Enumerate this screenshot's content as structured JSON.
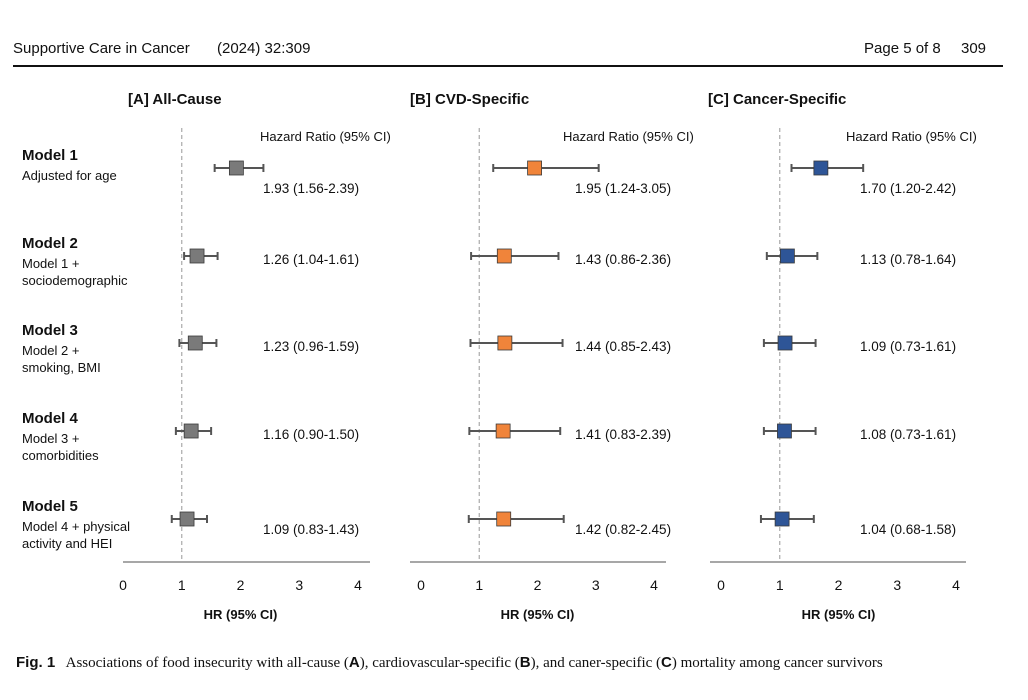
{
  "header": {
    "journal": "Supportive Care in Cancer",
    "citation": "(2024) 32:309",
    "page": "Page 5 of 8",
    "page_number": "309"
  },
  "caption": {
    "label": "Fig. 1",
    "text_1": "Associations of food insecurity with all-cause (",
    "A": "A",
    "text_2": "), cardiovascular-specific (",
    "B": "B",
    "text_3": "), and caner-specific (",
    "C": "C",
    "text_4": ") mortality among cancer survivors"
  },
  "models": [
    {
      "title": "Model 1",
      "desc": [
        "Adjusted for age"
      ]
    },
    {
      "title": "Model 2",
      "desc": [
        "Model 1 +",
        "sociodemographic"
      ]
    },
    {
      "title": "Model 3",
      "desc": [
        "Model 2 +",
        "smoking, BMI"
      ]
    },
    {
      "title": "Model 4",
      "desc": [
        "Model 3 +",
        "comorbidities"
      ]
    },
    {
      "title": "Model 5",
      "desc": [
        "Model 4 + physical",
        "activity and HEI"
      ]
    }
  ],
  "chart_data": [
    {
      "type": "scatter",
      "title": "[A] All-Cause",
      "column_label": "Hazard Ratio (95% CI)",
      "xlabel": "HR (95% CI)",
      "xlim": [
        0,
        4
      ],
      "xticks": [
        0,
        1,
        2,
        3,
        4
      ],
      "reference_line": 1,
      "color": "#7a7a7a",
      "points": [
        {
          "hr": 1.93,
          "low": 1.56,
          "high": 2.39,
          "label": "1.93 (1.56-2.39)"
        },
        {
          "hr": 1.26,
          "low": 1.04,
          "high": 1.61,
          "label": "1.26 (1.04-1.61)"
        },
        {
          "hr": 1.23,
          "low": 0.96,
          "high": 1.59,
          "label": "1.23 (0.96-1.59)"
        },
        {
          "hr": 1.16,
          "low": 0.9,
          "high": 1.5,
          "label": "1.16 (0.90-1.50)"
        },
        {
          "hr": 1.09,
          "low": 0.83,
          "high": 1.43,
          "label": "1.09 (0.83-1.43)"
        }
      ]
    },
    {
      "type": "scatter",
      "title": "[B] CVD-Specific",
      "column_label": "Hazard Ratio (95% CI)",
      "xlabel": "HR (95% CI)",
      "xlim": [
        0,
        4
      ],
      "xticks": [
        0,
        1,
        2,
        3,
        4
      ],
      "reference_line": 1,
      "color": "#f0843a",
      "points": [
        {
          "hr": 1.95,
          "low": 1.24,
          "high": 3.05,
          "label": "1.95 (1.24-3.05)"
        },
        {
          "hr": 1.43,
          "low": 0.86,
          "high": 2.36,
          "label": "1.43 (0.86-2.36)"
        },
        {
          "hr": 1.44,
          "low": 0.85,
          "high": 2.43,
          "label": "1.44 (0.85-2.43)"
        },
        {
          "hr": 1.41,
          "low": 0.83,
          "high": 2.39,
          "label": "1.41 (0.83-2.39)"
        },
        {
          "hr": 1.42,
          "low": 0.82,
          "high": 2.45,
          "label": "1.42 (0.82-2.45)"
        }
      ]
    },
    {
      "type": "scatter",
      "title": "[C] Cancer-Specific",
      "column_label": "Hazard Ratio (95% CI)",
      "xlabel": "HR (95% CI)",
      "xlim": [
        0,
        4
      ],
      "xticks": [
        0,
        1,
        2,
        3,
        4
      ],
      "reference_line": 1,
      "color": "#2e5597",
      "points": [
        {
          "hr": 1.7,
          "low": 1.2,
          "high": 2.42,
          "label": "1.70 (1.20-2.42)"
        },
        {
          "hr": 1.13,
          "low": 0.78,
          "high": 1.64,
          "label": "1.13 (0.78-1.64)"
        },
        {
          "hr": 1.09,
          "low": 0.73,
          "high": 1.61,
          "label": "1.09 (0.73-1.61)"
        },
        {
          "hr": 1.08,
          "low": 0.73,
          "high": 1.61,
          "label": "1.08 (0.73-1.61)"
        },
        {
          "hr": 1.04,
          "low": 0.68,
          "high": 1.58,
          "label": "1.04 (0.68-1.58)"
        }
      ]
    }
  ]
}
